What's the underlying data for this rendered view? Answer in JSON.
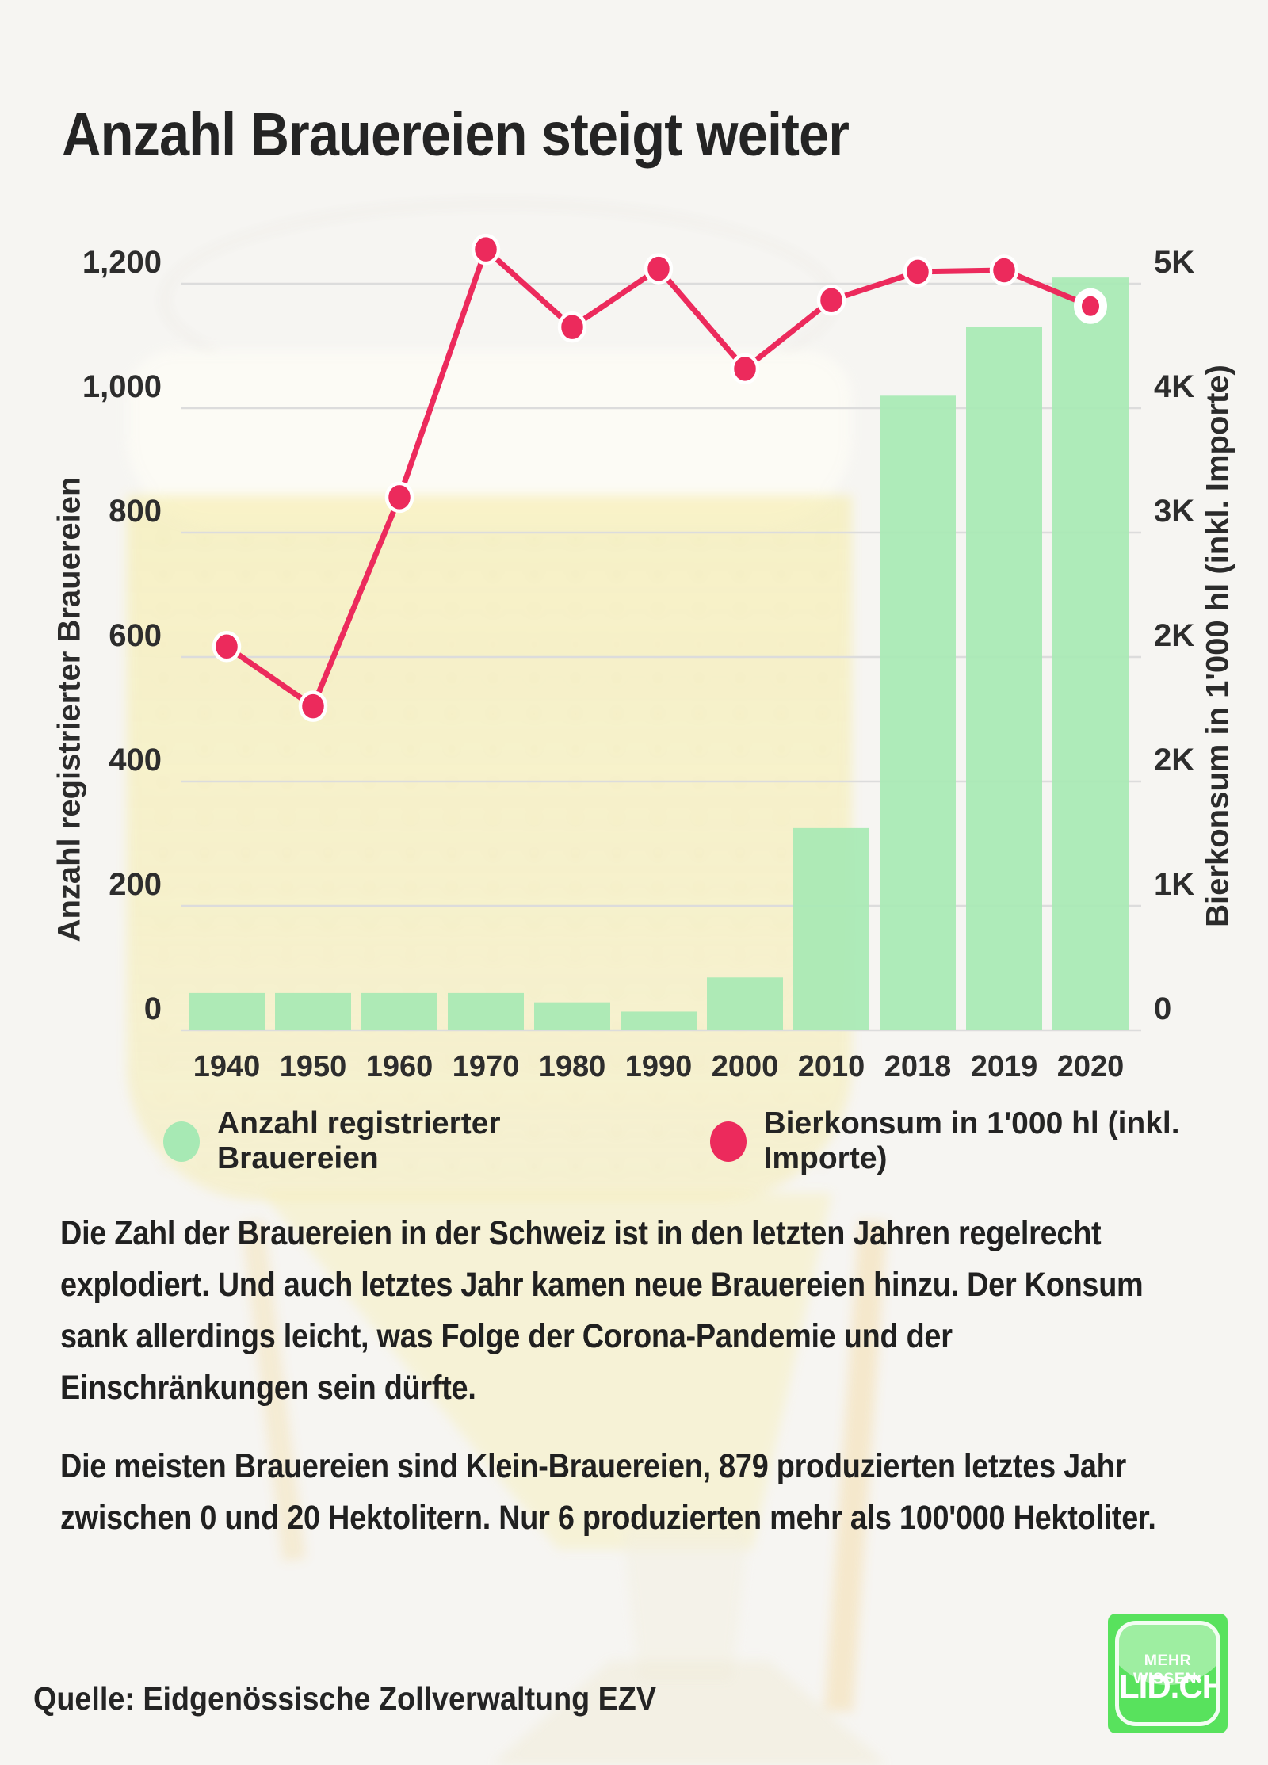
{
  "page": {
    "title": "Anzahl Brauereien steigt weiter",
    "background": "#f6f5f2"
  },
  "chart_data": {
    "type": "bar+line",
    "categories": [
      "1940",
      "1950",
      "1960",
      "1970",
      "1980",
      "1990",
      "2000",
      "2010",
      "2018",
      "2019",
      "2020"
    ],
    "series": [
      {
        "name": "Anzahl registrierter Brauereien",
        "type": "bar",
        "axis": "left",
        "color": "#a7e9b4",
        "values": [
          60,
          60,
          60,
          60,
          45,
          30,
          85,
          325,
          1020,
          1130,
          1210
        ]
      },
      {
        "name": "Bierkonsum in 1'000 hl (inkl. Importe)",
        "type": "line",
        "axis": "right",
        "color": "#ec2a5c",
        "values": [
          2570,
          2170,
          3570,
          5230,
          4710,
          5100,
          4430,
          4890,
          5080,
          5090,
          4850
        ]
      }
    ],
    "left_axis": {
      "label": "Anzahl registrierter Brauereien",
      "range": [
        0,
        1200
      ],
      "tick_values": [
        0,
        200,
        400,
        600,
        800,
        1000,
        1200
      ],
      "tick_labels": [
        "0",
        "200",
        "400",
        "600",
        "800",
        "1,000",
        "1,200"
      ]
    },
    "right_axis": {
      "label": "Bierkonsum in 1'000 hl (inkl. Importe)",
      "range": [
        0,
        5000
      ],
      "tick_labels": [
        "0",
        "1K",
        "2K",
        "2K",
        "3K",
        "4K",
        "5K"
      ]
    },
    "grid": "horizontal",
    "legend_position": "bottom",
    "highlight_last_line_point": true,
    "gridline_color": "#dcdcdc",
    "point_outline_color": "#ffffff"
  },
  "legend": {
    "items": [
      {
        "label": "Anzahl registrierter Brauereien",
        "color": "#a7e9b4"
      },
      {
        "label": "Bierkonsum in 1'000 hl (inkl. Importe)",
        "color": "#ec2a5c"
      }
    ]
  },
  "body": {
    "paragraph1_lines": [
      "Die Zahl der Brauereien in der Schweiz ist in den letzten Jahren regelrecht",
      "explodiert. Und auch letztes Jahr kamen neue Brauereien hinzu. Der Konsum",
      "sank allerdings leicht, was Folge der Corona-Pandemie und der",
      "Einschränkungen sein dürfte."
    ],
    "paragraph2_lines": [
      "Die meisten Brauereien sind Klein-Brauereien, 879 produzierten letztes Jahr",
      "zwischen 0 und 20 Hektolitern. Nur 6 produzierten mehr als 100'000 Hektoliter."
    ]
  },
  "source": "Quelle: Eidgenössische Zollverwaltung EZV",
  "logo": {
    "line1": "MEHR WISSEN:",
    "line2": "LID.CH",
    "color": "#58e25d"
  }
}
